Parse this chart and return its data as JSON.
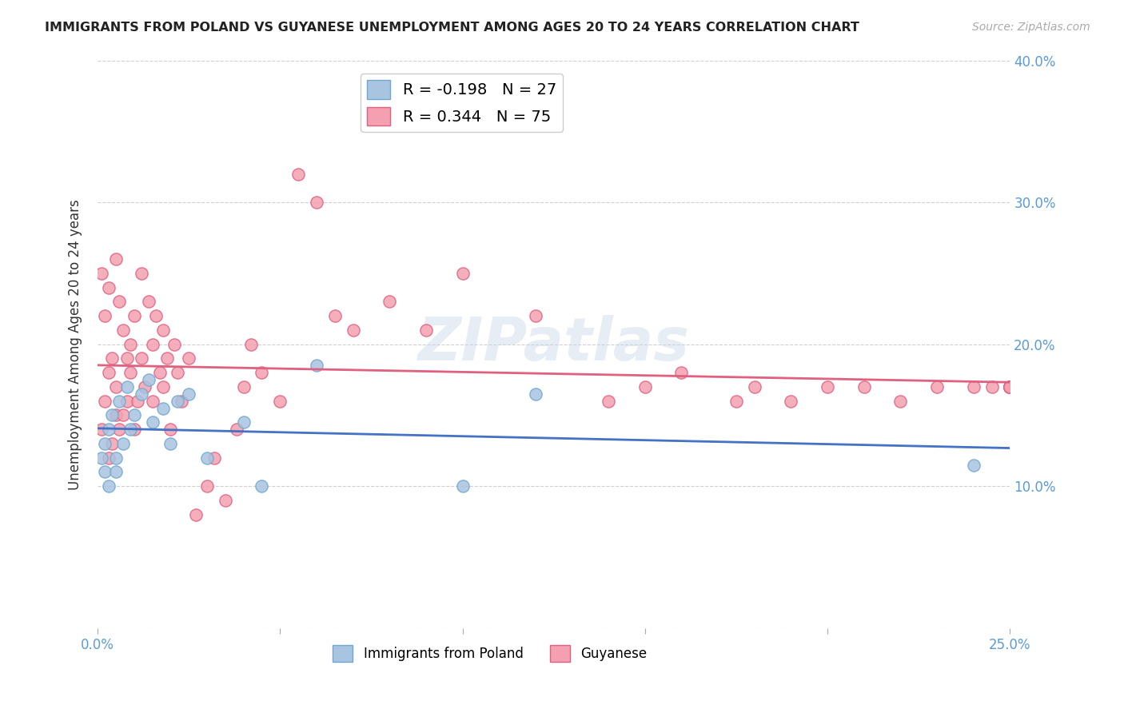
{
  "title": "IMMIGRANTS FROM POLAND VS GUYANESE UNEMPLOYMENT AMONG AGES 20 TO 24 YEARS CORRELATION CHART",
  "source": "Source: ZipAtlas.com",
  "ylabel": "Unemployment Among Ages 20 to 24 years",
  "xlim": [
    0.0,
    0.25
  ],
  "ylim": [
    0.0,
    0.4
  ],
  "xticks": [
    0.0,
    0.05,
    0.1,
    0.15,
    0.2,
    0.25
  ],
  "yticks": [
    0.0,
    0.1,
    0.2,
    0.3,
    0.4
  ],
  "background_color": "#ffffff",
  "watermark": "ZIPatlas",
  "poland_color": "#a8c4e0",
  "poland_edge_color": "#6fa8d0",
  "guyanese_color": "#f4a0b0",
  "guyanese_edge_color": "#e06080",
  "poland_R": -0.198,
  "poland_N": 27,
  "guyanese_R": 0.344,
  "guyanese_N": 75,
  "poland_trend_color": "#4472c4",
  "guyanese_trend_color": "#e06080",
  "poland_scatter_x": [
    0.001,
    0.002,
    0.002,
    0.003,
    0.003,
    0.004,
    0.005,
    0.005,
    0.006,
    0.007,
    0.008,
    0.009,
    0.01,
    0.012,
    0.014,
    0.015,
    0.018,
    0.02,
    0.022,
    0.025,
    0.03,
    0.04,
    0.045,
    0.06,
    0.1,
    0.12,
    0.24
  ],
  "poland_scatter_y": [
    0.12,
    0.11,
    0.13,
    0.14,
    0.1,
    0.15,
    0.12,
    0.11,
    0.16,
    0.13,
    0.17,
    0.14,
    0.15,
    0.165,
    0.175,
    0.145,
    0.155,
    0.13,
    0.16,
    0.165,
    0.12,
    0.145,
    0.1,
    0.185,
    0.1,
    0.165,
    0.115
  ],
  "guyanese_scatter_x": [
    0.001,
    0.001,
    0.002,
    0.002,
    0.003,
    0.003,
    0.003,
    0.004,
    0.004,
    0.005,
    0.005,
    0.005,
    0.006,
    0.006,
    0.007,
    0.007,
    0.008,
    0.008,
    0.009,
    0.009,
    0.01,
    0.01,
    0.011,
    0.012,
    0.012,
    0.013,
    0.014,
    0.015,
    0.015,
    0.016,
    0.017,
    0.018,
    0.018,
    0.019,
    0.02,
    0.021,
    0.022,
    0.023,
    0.025,
    0.027,
    0.03,
    0.032,
    0.035,
    0.038,
    0.04,
    0.042,
    0.045,
    0.05,
    0.055,
    0.06,
    0.065,
    0.07,
    0.08,
    0.09,
    0.1,
    0.12,
    0.14,
    0.15,
    0.16,
    0.175,
    0.18,
    0.19,
    0.2,
    0.21,
    0.22,
    0.23,
    0.24,
    0.245,
    0.25,
    0.25,
    0.25,
    0.25,
    0.25,
    0.25,
    0.25
  ],
  "guyanese_scatter_y": [
    0.14,
    0.25,
    0.16,
    0.22,
    0.12,
    0.18,
    0.24,
    0.13,
    0.19,
    0.15,
    0.17,
    0.26,
    0.14,
    0.23,
    0.15,
    0.21,
    0.16,
    0.19,
    0.18,
    0.2,
    0.14,
    0.22,
    0.16,
    0.19,
    0.25,
    0.17,
    0.23,
    0.2,
    0.16,
    0.22,
    0.18,
    0.17,
    0.21,
    0.19,
    0.14,
    0.2,
    0.18,
    0.16,
    0.19,
    0.08,
    0.1,
    0.12,
    0.09,
    0.14,
    0.17,
    0.2,
    0.18,
    0.16,
    0.32,
    0.3,
    0.22,
    0.21,
    0.23,
    0.21,
    0.25,
    0.22,
    0.16,
    0.17,
    0.18,
    0.16,
    0.17,
    0.16,
    0.17,
    0.17,
    0.16,
    0.17,
    0.17,
    0.17,
    0.17,
    0.17,
    0.17,
    0.17,
    0.17,
    0.17,
    0.17
  ]
}
